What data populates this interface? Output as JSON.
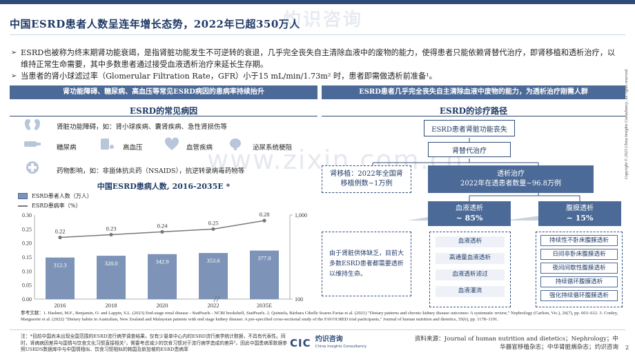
{
  "title": "中国ESRD患者人数呈连年增长态势，2022年已超350万人",
  "bullets": [
    "ESRD也被称为终末期肾功能衰竭，是指肾脏功能发生不可逆转的衰退，几乎完全丧失自主清除血液中的废物的能力，使得患者只能依赖肾替代治疗，即肾移植和透析治疗，以维持正常生命需要，其中多数患者通过接受血液透析治疗来延长生存期。",
    "当患者的肾小球滤过率（Glomerular Filtration Rate，GFR）小于15 mL/min/1.73m² 时，患者即需做透析前准备¹。"
  ],
  "banner_left": "肾功能障碍、糖尿病、高血压等常见ESRD病因的患病率持续抬升",
  "banner_right": "ESRD患者几乎完全丧失自主清除血液中废物的能力，为透析治疗刚需人群",
  "causes": {
    "title": "ESRD的常见病因",
    "kidney": "肾脏功能障碍，如：肾小球疾病、囊肾疾病、急性肾损伤等",
    "diabetes": "糖尿病",
    "hypertension": "高血压",
    "vascular": "血管疾病",
    "urinary": "泌尿系统梗阻",
    "drug": "药物影响，如：非甾体抗炎药（NSAIDS），抗逆转录病毒药物等"
  },
  "chart_data": {
    "type": "bar",
    "title": "中国ESRD患病人数, 2016-2035E *",
    "categories": [
      "2016",
      "2018",
      "2020",
      "2022",
      "2035E"
    ],
    "series": [
      {
        "name": "ESRD患者人数（万人）",
        "type": "bar",
        "values": [
          312.3,
          328.0,
          342.9,
          353.6,
          377.8
        ]
      },
      {
        "name": "ESRD患病率（%）",
        "type": "line",
        "values": [
          0.22,
          0.23,
          0.24,
          0.25,
          0.28
        ]
      }
    ],
    "y_left_ticks": [
      "0.30",
      "0.25",
      "0.20",
      "0.15",
      "0.10",
      "0.05",
      "0.00"
    ],
    "y_right_ticks": [
      "1,000",
      "100"
    ],
    "bar_color": "#7d94b8",
    "line_color": "#777777"
  },
  "pathway": {
    "title": "ESRD的诊疗路径",
    "root": "ESRD患者肾脏功能丧失",
    "therapy": "肾替代治疗",
    "transplant": "肾移植：2022年全国肾移植例数~1万例",
    "dialysis_title": "透析治疗",
    "dialysis_sub": "2022年在透患者数量~96.8万例",
    "hd_title": "血液透析",
    "hd_pct": "~ 85%",
    "pd_title": "腹膜透析",
    "pd_pct": "~ 15%",
    "hd_note": "由于肾脏供体缺乏，目前大多数ESRD患者都需要透析以维持生命。",
    "hd_items": [
      "血液透析",
      "高通量血液透析",
      "血液透析滤过",
      "血液灌流"
    ],
    "pd_items": [
      "持续性不卧床腹膜透析",
      "日间非卧床腹膜透析",
      "夜间间歇性腹膜透析",
      "持续循环腹膜透析",
      "强化持续循环腹膜透析"
    ]
  },
  "references": "参考文献：1. Hashmi, M.F., Benjamin, O. and Lappin, S.L. (2023) End-stage renal disease - StatPearls - NCBI bookshelf, StatPearls. 2. Quintela, Bárbara Cibelle Soares Farias et al. (2021) \"Dietary patterns and chronic kidney disease outcomes: A systematic review,\" Nephrology (Carlton, Vic.), 26(7), pp. 603–612. 3. Conley, Marguerite et al. (2022) \"Dietary habits in Australian, New Zealand and Malaysian patients with end stage kidney disease: A pre-specified cross-sectional study of the FAVOURED trial participants,\" Journal of human nutrition and dietetics, 35(6), pp. 1178–1191.",
  "note": "注：*目前中国尚未出现全国范围的ESRD流行病学调查结果，仅有少量单中心内的ESRD流行病学统计数据，不具有代表性。同时，肾病病因差异与国情与饮食文化习惯直接相关²，需要考虑减少的饮食习惯对于流行病学造成的差异³，因此中国患病率数据参照USRDS数据库中与中国情相似、饮食习惯相似的韩国及新加坡的ESRD患病率",
  "source": "资料来源：Journal of human nutrition and dietetics；Nephrology；中华器官移植杂志；中华肾脏病杂志；灼识咨询",
  "page_number": "2",
  "copyright": "Copyright © 2023 China Insights Consultancy. All rights reserved.",
  "watermark": "灼识咨询",
  "logo": {
    "mark": "CIC",
    "name": "灼识咨询",
    "sub": "China Insights Consultancy"
  },
  "site_watermark": "www.zixin.com.cn"
}
